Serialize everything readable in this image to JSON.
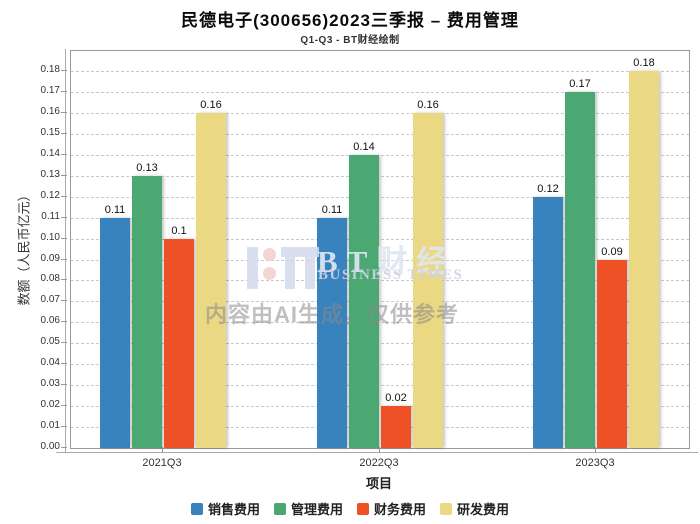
{
  "header": {
    "title": "民德电子(300656)2023三季报 – 费用管理",
    "subtitle": "Q1-Q3 - BT财经绘制"
  },
  "watermark": {
    "brand": "BT财经",
    "brand_en": "BUSINESS TIMES",
    "disclaimer": "内容由AI生成，仅供参考"
  },
  "chart_data": {
    "type": "bar",
    "title": "民德电子(300656)2023三季报 – 费用管理",
    "subtitle": "Q1-Q3 - BT财经绘制",
    "categories": [
      "2021Q3",
      "2022Q3",
      "2023Q3"
    ],
    "series": [
      {
        "name": "销售费用",
        "color": "#3882BD",
        "values": [
          0.11,
          0.11,
          0.12
        ],
        "labels": [
          "0.11",
          "0.11",
          "0.12"
        ]
      },
      {
        "name": "管理费用",
        "color": "#4BA873",
        "values": [
          0.13,
          0.14,
          0.17
        ],
        "labels": [
          "0.13",
          "0.14",
          "0.17"
        ]
      },
      {
        "name": "财务费用",
        "color": "#EE5126",
        "values": [
          0.1,
          0.02,
          0.09
        ],
        "labels": [
          "0.1",
          "0.02",
          "0.09"
        ]
      },
      {
        "name": "研发费用",
        "color": "#EBD883",
        "values": [
          0.16,
          0.16,
          0.18
        ],
        "labels": [
          "0.16",
          "0.16",
          "0.18"
        ]
      }
    ],
    "xlabel": "项目",
    "ylabel": "数额（人民币亿元）",
    "ylim": [
      0,
      0.18
    ],
    "ytick_step": 0.01,
    "ytick_format": "0.00",
    "grid": "dashed horizontal",
    "legend_position": "bottom",
    "value_labels": "above bars"
  }
}
